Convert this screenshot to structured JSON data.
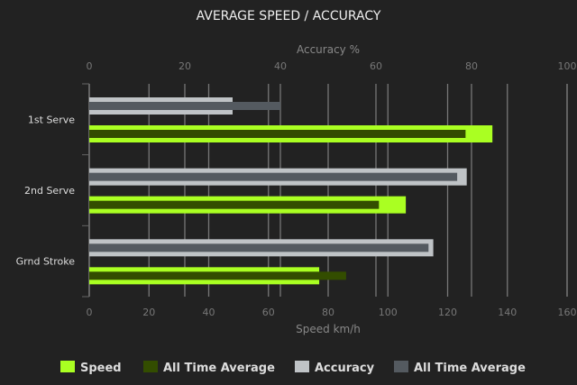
{
  "chart_data": {
    "type": "bar",
    "orientation": "horizontal",
    "title": "AVERAGE SPEED / ACCURACY",
    "categories": [
      "1st Serve",
      "2nd Serve",
      "Grnd Stroke"
    ],
    "x_bottom": {
      "label": "Speed km/h",
      "range": [
        0,
        160
      ],
      "ticks": [
        0,
        20,
        40,
        60,
        80,
        100,
        120,
        140,
        160
      ]
    },
    "x_top": {
      "label": "Accuracy %",
      "range": [
        0,
        100
      ],
      "ticks": [
        0,
        20,
        40,
        60,
        80,
        100
      ]
    },
    "grid": true,
    "legend_position": "bottom",
    "series": [
      {
        "name": "Speed",
        "axis": "bottom",
        "color": "#aaff22",
        "values": [
          135,
          106,
          77
        ]
      },
      {
        "name": "All Time Average",
        "axis": "bottom",
        "color": "#334d00",
        "values": [
          126,
          97,
          86
        ]
      },
      {
        "name": "Accuracy",
        "axis": "top",
        "color": "#bfc3c6",
        "values": [
          30,
          79,
          72
        ]
      },
      {
        "name": "All Time Average",
        "axis": "top",
        "color": "#545a60",
        "values": [
          40,
          77,
          71
        ]
      }
    ]
  }
}
